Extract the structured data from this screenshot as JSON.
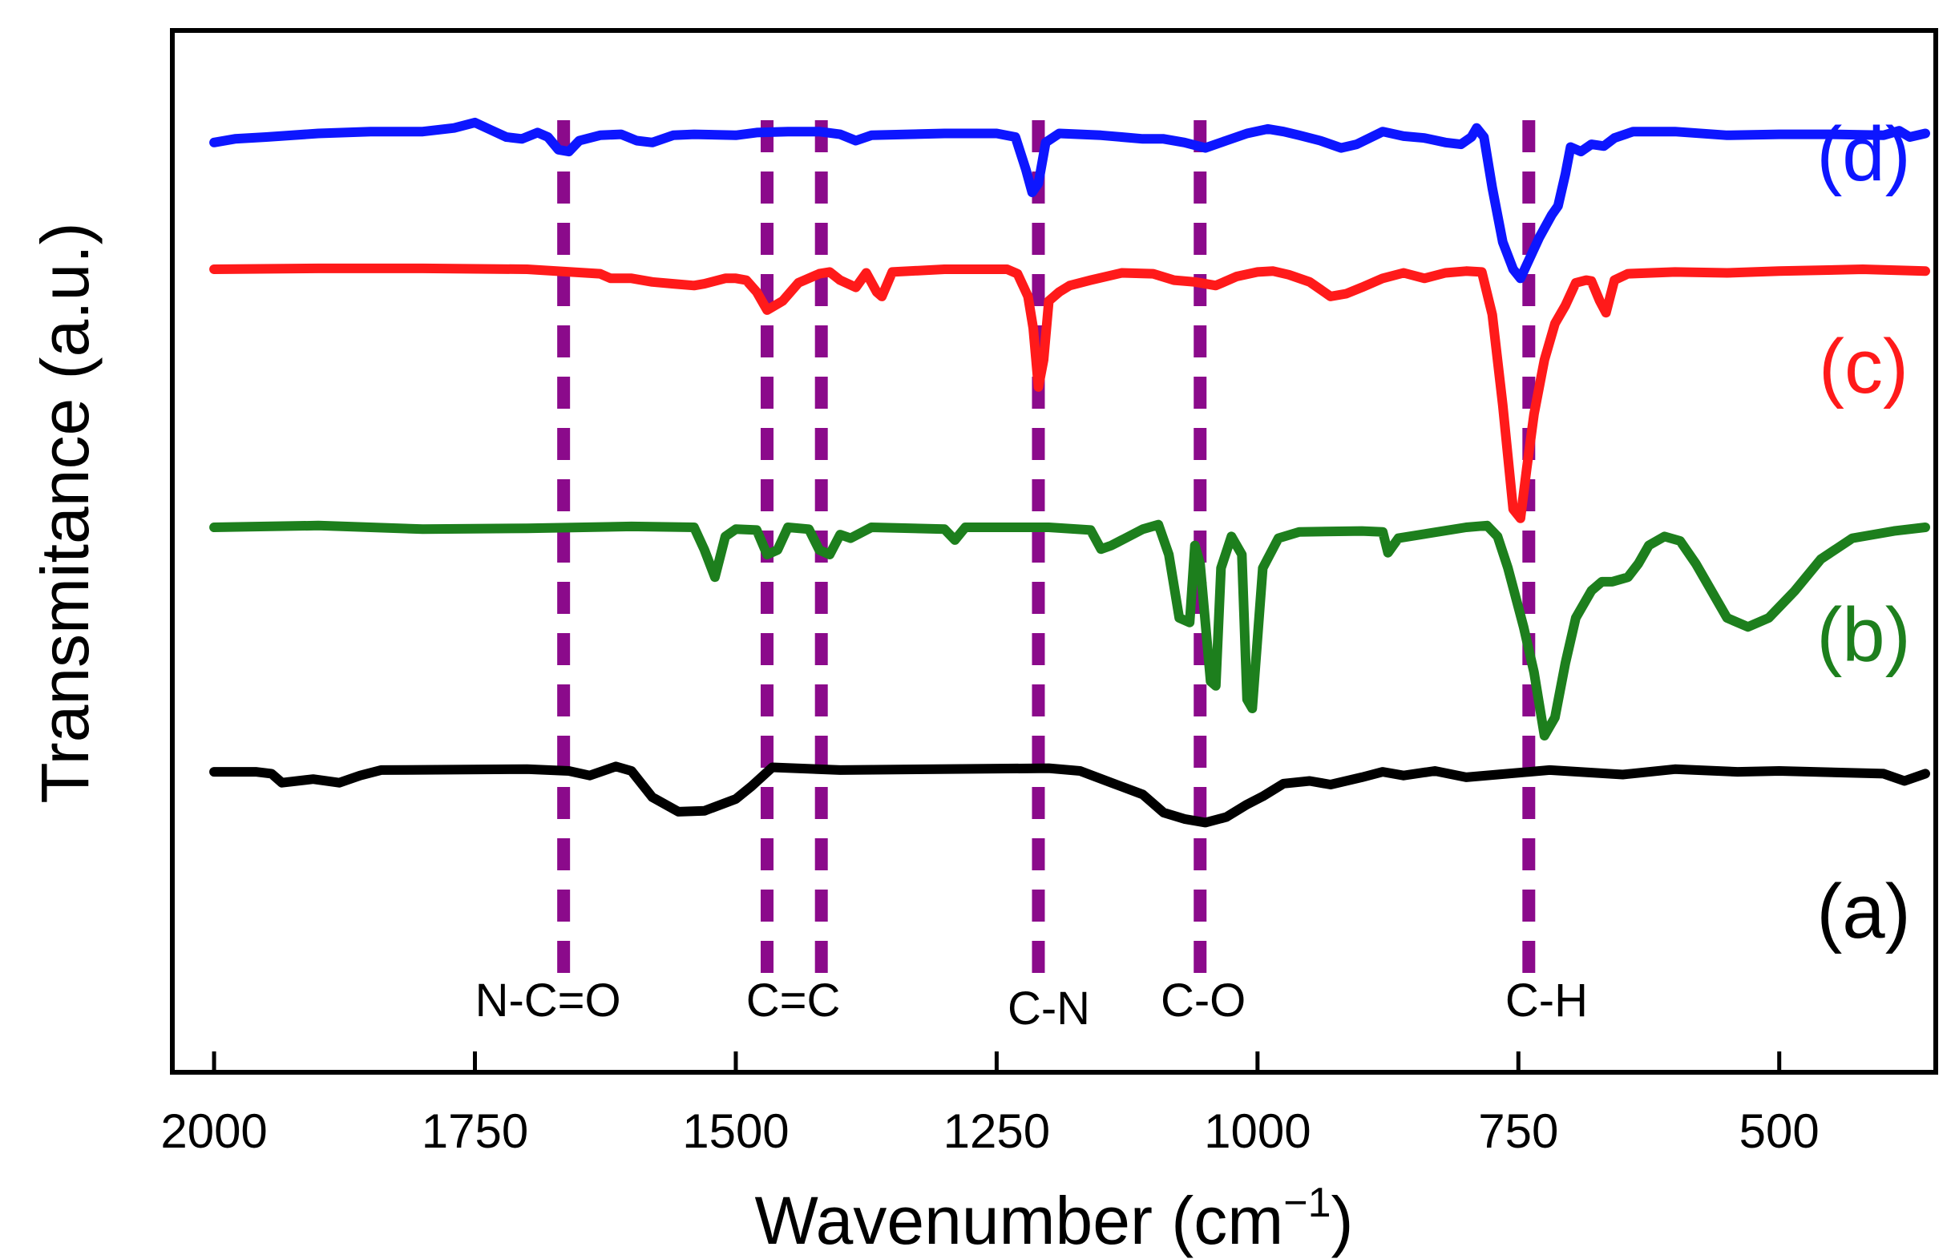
{
  "chart_data": {
    "type": "line",
    "title": "",
    "xlabel": "Wavenumber (cm",
    "xlabel_sup": "−1",
    "xlabel_close": ")",
    "ylabel": "Transmitance (a.u.)",
    "xlim": [
      2040,
      350
    ],
    "x_reversed": true,
    "xticks": [
      {
        "value": 2000,
        "label": "2000"
      },
      {
        "value": 1750,
        "label": "1750"
      },
      {
        "value": 1500,
        "label": "1500"
      },
      {
        "value": 1250,
        "label": "1250"
      },
      {
        "value": 1000,
        "label": "1000"
      },
      {
        "value": 750,
        "label": "750"
      },
      {
        "value": 500,
        "label": "500"
      }
    ],
    "grid": false,
    "legend": "inline labels on right",
    "offset_ylim": [
      0,
      1
    ],
    "series": [
      {
        "name": "(a)",
        "color": "#000000",
        "baseline": 0.245,
        "points": [
          [
            2000,
            0
          ],
          [
            1960,
            0
          ],
          [
            1945,
            -0.002
          ],
          [
            1935,
            -0.012
          ],
          [
            1905,
            -0.008
          ],
          [
            1880,
            -0.012
          ],
          [
            1860,
            -0.004
          ],
          [
            1840,
            0.002
          ],
          [
            1700,
            0.003
          ],
          [
            1660,
            0.001
          ],
          [
            1640,
            -0.004
          ],
          [
            1615,
            0.006
          ],
          [
            1600,
            0.001
          ],
          [
            1580,
            -0.028
          ],
          [
            1555,
            -0.044
          ],
          [
            1530,
            -0.043
          ],
          [
            1500,
            -0.03
          ],
          [
            1485,
            -0.016
          ],
          [
            1465,
            0.005
          ],
          [
            1400,
            0.002
          ],
          [
            1200,
            0.004
          ],
          [
            1170,
            0.001
          ],
          [
            1140,
            -0.012
          ],
          [
            1110,
            -0.025
          ],
          [
            1090,
            -0.045
          ],
          [
            1070,
            -0.052
          ],
          [
            1050,
            -0.056
          ],
          [
            1030,
            -0.05
          ],
          [
            1010,
            -0.036
          ],
          [
            995,
            -0.027
          ],
          [
            975,
            -0.013
          ],
          [
            950,
            -0.01
          ],
          [
            930,
            -0.014
          ],
          [
            900,
            -0.006
          ],
          [
            880,
            0
          ],
          [
            860,
            -0.004
          ],
          [
            830,
            0.001
          ],
          [
            800,
            -0.006
          ],
          [
            770,
            -0.003
          ],
          [
            720,
            0.002
          ],
          [
            650,
            -0.003
          ],
          [
            600,
            0.003
          ],
          [
            540,
            0
          ],
          [
            500,
            0.001
          ],
          [
            400,
            -0.002
          ],
          [
            380,
            -0.01
          ],
          [
            360,
            -0.002
          ]
        ]
      },
      {
        "name": "(b)",
        "color": "#1d7f1d",
        "baseline": 0.515,
        "points": [
          [
            2000,
            0
          ],
          [
            1900,
            0.002
          ],
          [
            1800,
            -0.002
          ],
          [
            1700,
            -0.001
          ],
          [
            1600,
            0.001
          ],
          [
            1540,
            0
          ],
          [
            1530,
            -0.025
          ],
          [
            1520,
            -0.055
          ],
          [
            1510,
            -0.01
          ],
          [
            1500,
            -0.002
          ],
          [
            1480,
            -0.003
          ],
          [
            1470,
            -0.03
          ],
          [
            1460,
            -0.025
          ],
          [
            1450,
            0
          ],
          [
            1430,
            -0.002
          ],
          [
            1420,
            -0.025
          ],
          [
            1410,
            -0.03
          ],
          [
            1400,
            -0.008
          ],
          [
            1390,
            -0.012
          ],
          [
            1370,
            0
          ],
          [
            1300,
            -0.002
          ],
          [
            1290,
            -0.014
          ],
          [
            1280,
            0
          ],
          [
            1200,
            0
          ],
          [
            1160,
            -0.003
          ],
          [
            1150,
            -0.024
          ],
          [
            1140,
            -0.02
          ],
          [
            1110,
            -0.002
          ],
          [
            1095,
            0.003
          ],
          [
            1085,
            -0.03
          ],
          [
            1075,
            -0.1
          ],
          [
            1065,
            -0.105
          ],
          [
            1060,
            -0.02
          ],
          [
            1055,
            -0.04
          ],
          [
            1045,
            -0.17
          ],
          [
            1040,
            -0.175
          ],
          [
            1035,
            -0.045
          ],
          [
            1025,
            -0.01
          ],
          [
            1015,
            -0.03
          ],
          [
            1010,
            -0.19
          ],
          [
            1005,
            -0.2
          ],
          [
            995,
            -0.045
          ],
          [
            980,
            -0.012
          ],
          [
            960,
            -0.005
          ],
          [
            900,
            -0.004
          ],
          [
            880,
            -0.005
          ],
          [
            875,
            -0.028
          ],
          [
            865,
            -0.012
          ],
          [
            800,
            0
          ],
          [
            780,
            0.002
          ],
          [
            770,
            -0.01
          ],
          [
            760,
            -0.045
          ],
          [
            745,
            -0.11
          ],
          [
            735,
            -0.16
          ],
          [
            725,
            -0.23
          ],
          [
            715,
            -0.21
          ],
          [
            705,
            -0.15
          ],
          [
            695,
            -0.1
          ],
          [
            680,
            -0.07
          ],
          [
            670,
            -0.06
          ],
          [
            660,
            -0.06
          ],
          [
            645,
            -0.055
          ],
          [
            635,
            -0.04
          ],
          [
            625,
            -0.02
          ],
          [
            610,
            -0.01
          ],
          [
            595,
            -0.015
          ],
          [
            580,
            -0.04
          ],
          [
            565,
            -0.07
          ],
          [
            550,
            -0.1
          ],
          [
            530,
            -0.11
          ],
          [
            510,
            -0.1
          ],
          [
            485,
            -0.07
          ],
          [
            460,
            -0.035
          ],
          [
            430,
            -0.012
          ],
          [
            390,
            -0.004
          ],
          [
            360,
            0
          ]
        ]
      },
      {
        "name": "(c)",
        "color": "#ff1a1a",
        "baseline": 0.8,
        "points": [
          [
            2000,
            0
          ],
          [
            1900,
            0.001
          ],
          [
            1800,
            0.001
          ],
          [
            1700,
            0
          ],
          [
            1630,
            -0.005
          ],
          [
            1620,
            -0.01
          ],
          [
            1600,
            -0.01
          ],
          [
            1580,
            -0.014
          ],
          [
            1560,
            -0.016
          ],
          [
            1540,
            -0.018
          ],
          [
            1530,
            -0.016
          ],
          [
            1510,
            -0.01
          ],
          [
            1500,
            -0.01
          ],
          [
            1490,
            -0.012
          ],
          [
            1480,
            -0.025
          ],
          [
            1470,
            -0.045
          ],
          [
            1455,
            -0.035
          ],
          [
            1440,
            -0.015
          ],
          [
            1420,
            -0.005
          ],
          [
            1410,
            -0.003
          ],
          [
            1400,
            -0.012
          ],
          [
            1385,
            -0.02
          ],
          [
            1375,
            -0.004
          ],
          [
            1365,
            -0.025
          ],
          [
            1360,
            -0.03
          ],
          [
            1350,
            -0.003
          ],
          [
            1300,
            0
          ],
          [
            1240,
            0
          ],
          [
            1230,
            -0.005
          ],
          [
            1220,
            -0.03
          ],
          [
            1215,
            -0.065
          ],
          [
            1210,
            -0.13
          ],
          [
            1205,
            -0.1
          ],
          [
            1200,
            -0.035
          ],
          [
            1190,
            -0.025
          ],
          [
            1180,
            -0.018
          ],
          [
            1160,
            -0.012
          ],
          [
            1130,
            -0.004
          ],
          [
            1100,
            -0.005
          ],
          [
            1080,
            -0.012
          ],
          [
            1060,
            -0.014
          ],
          [
            1040,
            -0.018
          ],
          [
            1020,
            -0.008
          ],
          [
            1000,
            -0.003
          ],
          [
            985,
            -0.002
          ],
          [
            970,
            -0.006
          ],
          [
            950,
            -0.014
          ],
          [
            930,
            -0.03
          ],
          [
            915,
            -0.027
          ],
          [
            900,
            -0.02
          ],
          [
            880,
            -0.01
          ],
          [
            860,
            -0.004
          ],
          [
            840,
            -0.01
          ],
          [
            820,
            -0.004
          ],
          [
            800,
            -0.002
          ],
          [
            785,
            -0.003
          ],
          [
            775,
            -0.05
          ],
          [
            765,
            -0.15
          ],
          [
            755,
            -0.265
          ],
          [
            748,
            -0.275
          ],
          [
            742,
            -0.22
          ],
          [
            735,
            -0.16
          ],
          [
            725,
            -0.1
          ],
          [
            715,
            -0.06
          ],
          [
            705,
            -0.04
          ],
          [
            695,
            -0.015
          ],
          [
            685,
            -0.012
          ],
          [
            680,
            -0.013
          ],
          [
            672,
            -0.035
          ],
          [
            666,
            -0.048
          ],
          [
            658,
            -0.012
          ],
          [
            645,
            -0.005
          ],
          [
            600,
            -0.003
          ],
          [
            550,
            -0.004
          ],
          [
            500,
            -0.002
          ],
          [
            420,
            0
          ],
          [
            360,
            -0.002
          ]
        ]
      },
      {
        "name": "(d)",
        "color": "#0d16ff",
        "baseline": 0.95,
        "points": [
          [
            2000,
            -0.01
          ],
          [
            1980,
            -0.006
          ],
          [
            1950,
            -0.004
          ],
          [
            1900,
            0
          ],
          [
            1850,
            0.002
          ],
          [
            1800,
            0.002
          ],
          [
            1770,
            0.006
          ],
          [
            1750,
            0.012
          ],
          [
            1735,
            0.004
          ],
          [
            1720,
            -0.004
          ],
          [
            1705,
            -0.006
          ],
          [
            1690,
            0.001
          ],
          [
            1680,
            -0.004
          ],
          [
            1670,
            -0.018
          ],
          [
            1660,
            -0.02
          ],
          [
            1650,
            -0.008
          ],
          [
            1630,
            -0.002
          ],
          [
            1610,
            -0.001
          ],
          [
            1595,
            -0.008
          ],
          [
            1580,
            -0.01
          ],
          [
            1560,
            -0.002
          ],
          [
            1540,
            -0.001
          ],
          [
            1500,
            -0.002
          ],
          [
            1480,
            0.001
          ],
          [
            1450,
            0.002
          ],
          [
            1420,
            0.002
          ],
          [
            1400,
            -0.001
          ],
          [
            1385,
            -0.008
          ],
          [
            1370,
            -0.002
          ],
          [
            1300,
            0
          ],
          [
            1250,
            0
          ],
          [
            1232,
            -0.004
          ],
          [
            1222,
            -0.04
          ],
          [
            1216,
            -0.065
          ],
          [
            1210,
            -0.055
          ],
          [
            1203,
            -0.01
          ],
          [
            1190,
            0
          ],
          [
            1150,
            -0.002
          ],
          [
            1110,
            -0.006
          ],
          [
            1090,
            -0.006
          ],
          [
            1070,
            -0.01
          ],
          [
            1050,
            -0.016
          ],
          [
            1030,
            -0.008
          ],
          [
            1010,
            0
          ],
          [
            990,
            0.005
          ],
          [
            975,
            0.002
          ],
          [
            960,
            -0.002
          ],
          [
            940,
            -0.008
          ],
          [
            920,
            -0.016
          ],
          [
            905,
            -0.012
          ],
          [
            880,
            0.002
          ],
          [
            860,
            -0.003
          ],
          [
            840,
            -0.005
          ],
          [
            820,
            -0.01
          ],
          [
            805,
            -0.012
          ],
          [
            795,
            -0.004
          ],
          [
            790,
            0.006
          ],
          [
            783,
            -0.004
          ],
          [
            775,
            -0.06
          ],
          [
            765,
            -0.12
          ],
          [
            755,
            -0.15
          ],
          [
            748,
            -0.16
          ],
          [
            742,
            -0.145
          ],
          [
            730,
            -0.115
          ],
          [
            718,
            -0.09
          ],
          [
            712,
            -0.08
          ],
          [
            705,
            -0.045
          ],
          [
            700,
            -0.015
          ],
          [
            690,
            -0.02
          ],
          [
            680,
            -0.012
          ],
          [
            668,
            -0.014
          ],
          [
            658,
            -0.005
          ],
          [
            640,
            0.002
          ],
          [
            600,
            0.002
          ],
          [
            550,
            -0.002
          ],
          [
            500,
            -0.001
          ],
          [
            450,
            -0.001
          ],
          [
            400,
            -0.002
          ],
          [
            385,
            0.003
          ],
          [
            375,
            -0.004
          ],
          [
            360,
            0
          ]
        ]
      }
    ],
    "bands": [
      {
        "label": "N-C=O",
        "x": 1665
      },
      {
        "label": "C=C",
        "x": 1470
      },
      {
        "label": "",
        "x": 1418
      },
      {
        "label": "C-N",
        "x": 1210
      },
      {
        "label": "C-O",
        "x": 1055
      },
      {
        "label": "C-H",
        "x": 740
      }
    ],
    "band_labels_below": [
      {
        "label": "N-C=O",
        "x": 1680
      },
      {
        "label": "C=C",
        "x": 1445
      },
      {
        "label": "C-N",
        "x": 1200
      },
      {
        "label": "C-O",
        "x": 1052
      },
      {
        "label": "C-H",
        "x": 723
      }
    ],
    "band_color": "#8b0a8b"
  }
}
